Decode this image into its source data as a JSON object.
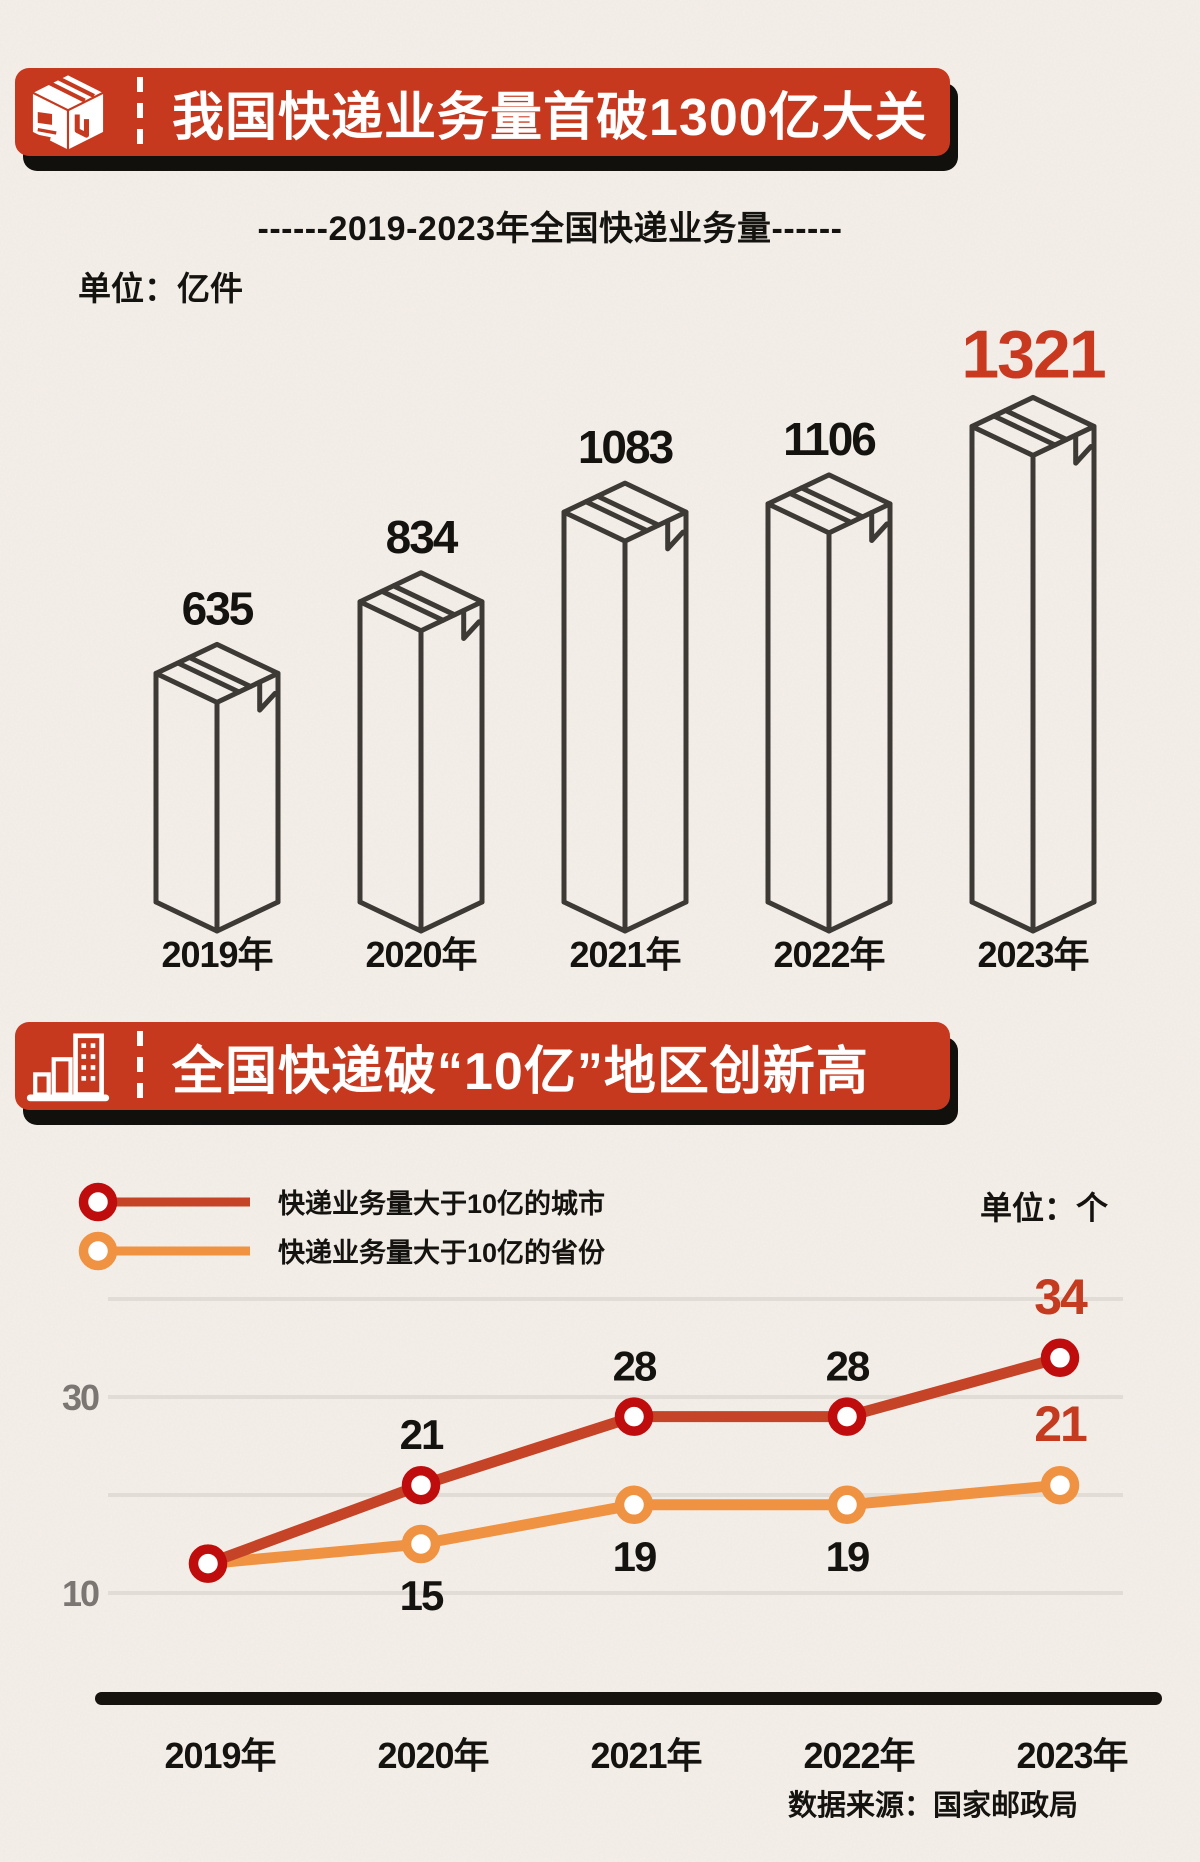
{
  "colors": {
    "background": "#f5efea",
    "banner_red": "#c6391f",
    "banner_shadow": "#12100d",
    "box_outline": "#3d3935",
    "value_black": "#151310",
    "highlight_red": "#c8391f",
    "grid_gray": "#e2dcd7",
    "tick_gray": "#7b7672",
    "axis_black": "#16130f",
    "city_line": "#c54327",
    "city_ring": "#bf0d0d",
    "province_line": "#ef9242",
    "province_ring": "#ef9242",
    "end_label_red": "#c43b20"
  },
  "section1": {
    "banner_title": "我国快递业务量首破1300亿大关",
    "banner_icon": "package-box-icon",
    "subtitle": "------2019-2023年全国快递业务量------",
    "unit_label": "单位：亿件"
  },
  "section2": {
    "banner_title": "全国快递破“10亿”地区创新高",
    "banner_icon": "buildings-bar-chart-icon",
    "unit_label": "单位：个",
    "legend": [
      {
        "label": "快递业务量大于10亿的城市"
      },
      {
        "label": "快递业务量大于10亿的省份"
      }
    ],
    "source": "数据来源：国家邮政局"
  },
  "chart_data": [
    {
      "type": "bar",
      "title": "------2019-2023年全国快递业务量------",
      "unit": "亿件",
      "bar_style": "isometric-cardboard-box-outline",
      "categories": [
        "2019年",
        "2020年",
        "2021年",
        "2022年",
        "2023年"
      ],
      "values": [
        635,
        834,
        1083,
        1106,
        1321
      ],
      "highlight_index": 4,
      "value_label_colors": [
        "#151310",
        "#151310",
        "#151310",
        "#151310",
        "#c8391f"
      ]
    },
    {
      "type": "line",
      "unit": "个",
      "categories": [
        "2019年",
        "2020年",
        "2021年",
        "2022年",
        "2023年"
      ],
      "ylim": [
        10,
        40
      ],
      "gridline_values": [
        10,
        20,
        30,
        40
      ],
      "ytick_labels": [
        30,
        10
      ],
      "grid": true,
      "legend_position": "top-left",
      "series": [
        {
          "name": "快递业务量大于10亿的城市",
          "line_color": "#c54327",
          "ring_color": "#bf0d0d",
          "values": [
            13,
            21,
            28,
            28,
            34
          ],
          "value_labels": [
            "",
            "21",
            "28",
            "28",
            "34"
          ],
          "label_positions": [
            "none",
            "above",
            "above",
            "above",
            "above"
          ],
          "label_colors": [
            "",
            "#151310",
            "#151310",
            "#151310",
            "#c43b20"
          ]
        },
        {
          "name": "快递业务量大于10亿的省份",
          "line_color": "#ef9242",
          "ring_color": "#ef9242",
          "values": [
            13,
            15,
            19,
            19,
            21
          ],
          "value_labels": [
            "",
            "15",
            "19",
            "19",
            "21"
          ],
          "label_positions": [
            "none",
            "below",
            "below",
            "below",
            "above"
          ],
          "label_colors": [
            "",
            "#151310",
            "#151310",
            "#151310",
            "#c43b20"
          ]
        }
      ],
      "source": "数据来源：国家邮政局"
    }
  ]
}
